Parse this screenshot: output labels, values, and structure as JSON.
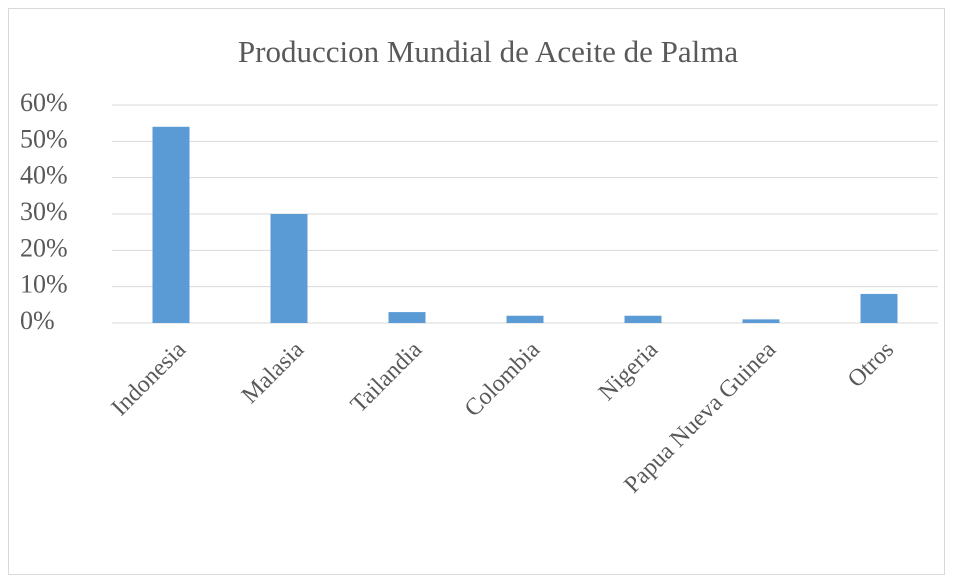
{
  "chart_data": {
    "type": "bar",
    "title": "Produccion Mundial de Aceite de Palma",
    "categories": [
      "Indonesia",
      "Malasia",
      "Tailandia",
      "Colombia",
      "Nigeria",
      "Papua Nueva Guinea",
      "Otros"
    ],
    "values": [
      54,
      30,
      3,
      2,
      2,
      1,
      8
    ],
    "color": "#5b9bd5",
    "ylim": [
      0,
      60
    ],
    "yticks": [
      {
        "value": 0,
        "label": "0%"
      },
      {
        "value": 10,
        "label": "10%"
      },
      {
        "value": 20,
        "label": "20%"
      },
      {
        "value": 30,
        "label": "30%"
      },
      {
        "value": 40,
        "label": "40%"
      },
      {
        "value": 50,
        "label": "50%"
      },
      {
        "value": 60,
        "label": "60%"
      }
    ],
    "grid": true
  }
}
